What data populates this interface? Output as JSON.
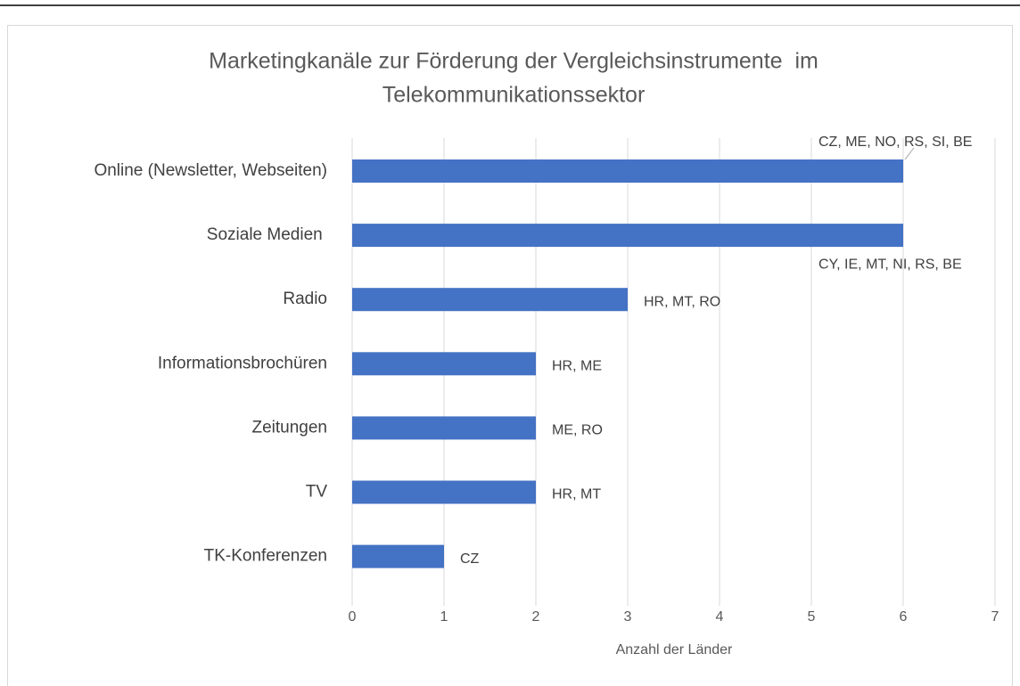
{
  "chart_data": {
    "type": "hbar",
    "title": [
      "Marketingkanäle zur Förderung der Vergleichsinstrumente  im",
      "Telekommunikationssektor"
    ],
    "categories": [
      "Online (Newsletter, Webseiten)",
      "Soziale Medien ",
      "Radio",
      "Informationsbrochüren",
      "Zeitungen",
      "TV",
      "TK-Konferenzen"
    ],
    "values": [
      6,
      6,
      3,
      2,
      2,
      2,
      1
    ],
    "value_labels": [
      "CZ, ME, NO, RS, SI, BE",
      "CY, IE, MT, NI, RS, BE",
      "HR, MT, RO",
      "HR, ME",
      "ME, RO",
      "HR, MT",
      "CZ"
    ],
    "color": "#4472c4",
    "xlabel": "Anzahl der Länder",
    "xlim": [
      0,
      7
    ],
    "xticks": [
      0,
      1,
      2,
      3,
      4,
      5,
      6,
      7
    ],
    "grid": true
  }
}
